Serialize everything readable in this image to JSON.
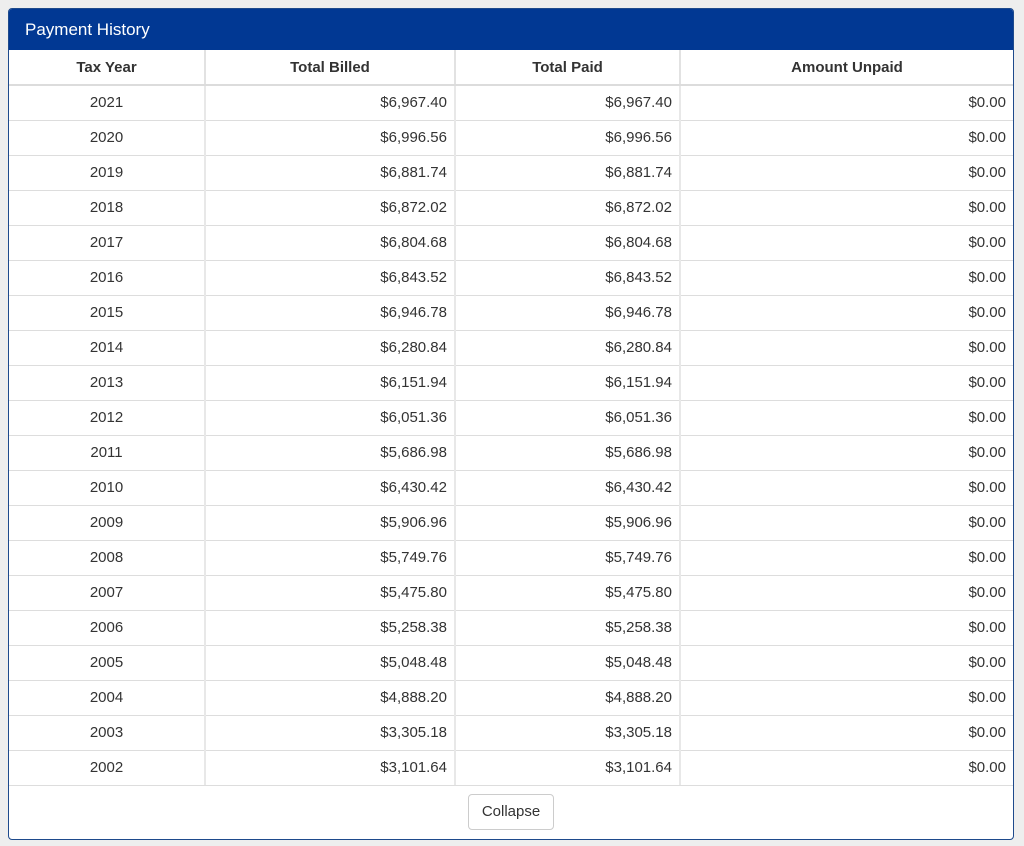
{
  "panel": {
    "title": "Payment History"
  },
  "table": {
    "columns": [
      "Tax Year",
      "Total Billed",
      "Total Paid",
      "Amount Unpaid"
    ],
    "rows": [
      {
        "year": "2021",
        "billed": "$6,967.40",
        "paid": "$6,967.40",
        "unpaid": "$0.00"
      },
      {
        "year": "2020",
        "billed": "$6,996.56",
        "paid": "$6,996.56",
        "unpaid": "$0.00"
      },
      {
        "year": "2019",
        "billed": "$6,881.74",
        "paid": "$6,881.74",
        "unpaid": "$0.00"
      },
      {
        "year": "2018",
        "billed": "$6,872.02",
        "paid": "$6,872.02",
        "unpaid": "$0.00"
      },
      {
        "year": "2017",
        "billed": "$6,804.68",
        "paid": "$6,804.68",
        "unpaid": "$0.00"
      },
      {
        "year": "2016",
        "billed": "$6,843.52",
        "paid": "$6,843.52",
        "unpaid": "$0.00"
      },
      {
        "year": "2015",
        "billed": "$6,946.78",
        "paid": "$6,946.78",
        "unpaid": "$0.00"
      },
      {
        "year": "2014",
        "billed": "$6,280.84",
        "paid": "$6,280.84",
        "unpaid": "$0.00"
      },
      {
        "year": "2013",
        "billed": "$6,151.94",
        "paid": "$6,151.94",
        "unpaid": "$0.00"
      },
      {
        "year": "2012",
        "billed": "$6,051.36",
        "paid": "$6,051.36",
        "unpaid": "$0.00"
      },
      {
        "year": "2011",
        "billed": "$5,686.98",
        "paid": "$5,686.98",
        "unpaid": "$0.00"
      },
      {
        "year": "2010",
        "billed": "$6,430.42",
        "paid": "$6,430.42",
        "unpaid": "$0.00"
      },
      {
        "year": "2009",
        "billed": "$5,906.96",
        "paid": "$5,906.96",
        "unpaid": "$0.00"
      },
      {
        "year": "2008",
        "billed": "$5,749.76",
        "paid": "$5,749.76",
        "unpaid": "$0.00"
      },
      {
        "year": "2007",
        "billed": "$5,475.80",
        "paid": "$5,475.80",
        "unpaid": "$0.00"
      },
      {
        "year": "2006",
        "billed": "$5,258.38",
        "paid": "$5,258.38",
        "unpaid": "$0.00"
      },
      {
        "year": "2005",
        "billed": "$5,048.48",
        "paid": "$5,048.48",
        "unpaid": "$0.00"
      },
      {
        "year": "2004",
        "billed": "$4,888.20",
        "paid": "$4,888.20",
        "unpaid": "$0.00"
      },
      {
        "year": "2003",
        "billed": "$3,305.18",
        "paid": "$3,305.18",
        "unpaid": "$0.00"
      },
      {
        "year": "2002",
        "billed": "$3,101.64",
        "paid": "$3,101.64",
        "unpaid": "$0.00"
      }
    ]
  },
  "footer": {
    "collapse_label": "Collapse"
  },
  "colors": {
    "header_bg": "#013893",
    "header_text": "#ffffff",
    "page_bg": "#eeeeee"
  }
}
